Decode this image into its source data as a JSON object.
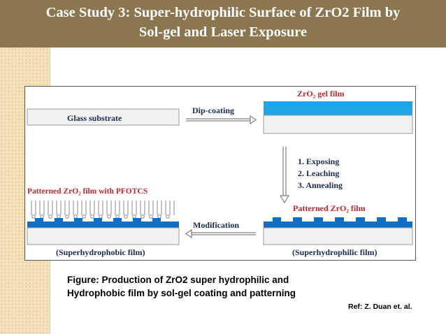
{
  "slide": {
    "title_line1": "Case Study 3: Super-hydrophilic Surface of ZrO2 Film by",
    "title_line2": "Sol-gel and Laser Exposure",
    "caption_line1": "Figure: Production of ZrO2 super hydrophilic and",
    "caption_line2": "Hydrophobic film by sol-gel coating and patterning",
    "reference": "Ref: Z. Duan et. al."
  },
  "figure": {
    "glass_substrate": "Glass substrate",
    "dip_coating": "Dip-coating",
    "gel_film": "ZrO₂ gel film",
    "steps": [
      "1. Exposing",
      "2. Leaching",
      "3. Annealing"
    ],
    "patterned_film_pfotcs": "Patterned ZrO₂ film with PFOTCS",
    "patterned_film": "Patterned ZrO₂ film",
    "modification": "Modification",
    "superhydrophobic": "(Superhydrophobic film)",
    "superhydrophilic": "(Superhydrophilic film)"
  },
  "colors": {
    "banner": "#8b7650",
    "film_blue": "#0f6fc6",
    "gel_blue": "#1fa6e6",
    "label_red": "#c1272d",
    "label_navy": "#1a2a50"
  }
}
